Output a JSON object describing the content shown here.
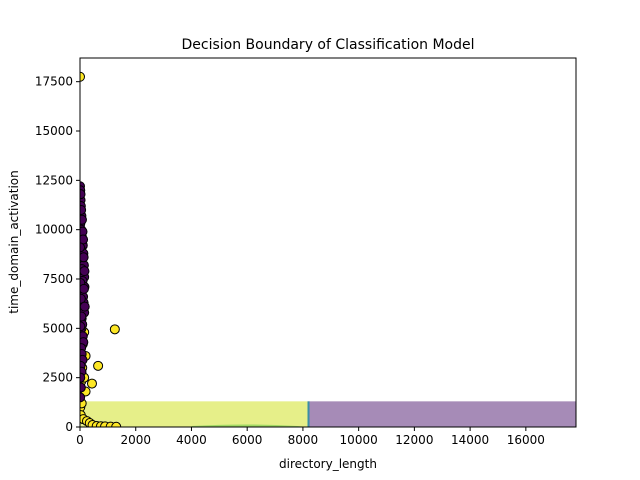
{
  "chart_data": {
    "type": "scatter",
    "title": "Decision Boundary of Classification Model",
    "xlabel": "directory_length",
    "ylabel": "time_domain_activation",
    "xlim": [
      0,
      17800
    ],
    "ylim": [
      0,
      18700
    ],
    "xticks": [
      0,
      2000,
      4000,
      6000,
      8000,
      10000,
      12000,
      14000,
      16000
    ],
    "yticks": [
      0,
      2500,
      5000,
      7500,
      10000,
      12500,
      15000,
      17500
    ],
    "grid": false,
    "legend": "none",
    "colors": {
      "class_yellow": "#fde725",
      "class_purple": "#440154",
      "region_yellow": "#e6ef89",
      "region_purple": "#a68bb7",
      "region_green": "#8fd35a",
      "boundary_teal": "#3b8ea5",
      "marker_edge": "#000000"
    },
    "regions": [
      {
        "class": "yellow",
        "x": [
          0,
          8200
        ],
        "y": [
          0,
          1300
        ]
      },
      {
        "class": "purple",
        "x": [
          8200,
          17800
        ],
        "y": [
          0,
          1300
        ]
      }
    ],
    "series": [
      {
        "class": "yellow",
        "points": [
          [
            0,
            17750
          ],
          [
            1250,
            4950
          ],
          [
            650,
            3100
          ],
          [
            430,
            2200
          ],
          [
            200,
            3600
          ],
          [
            150,
            4800
          ],
          [
            100,
            4200
          ],
          [
            60,
            2700
          ],
          [
            40,
            2300
          ],
          [
            20,
            2000
          ],
          [
            10,
            1000
          ],
          [
            30,
            600
          ],
          [
            60,
            1200
          ],
          [
            120,
            400
          ],
          [
            250,
            300
          ],
          [
            350,
            200
          ],
          [
            450,
            100
          ],
          [
            600,
            50
          ],
          [
            750,
            40
          ],
          [
            900,
            30
          ],
          [
            1100,
            20
          ],
          [
            1300,
            10
          ],
          [
            80,
            3000
          ],
          [
            50,
            5000
          ],
          [
            100,
            6000
          ],
          [
            90,
            7100
          ],
          [
            30,
            8000
          ],
          [
            5,
            5500
          ],
          [
            5,
            3800
          ],
          [
            150,
            2500
          ],
          [
            200,
            1800
          ],
          [
            10,
            4400
          ],
          [
            0,
            2800
          ]
        ]
      },
      {
        "class": "purple",
        "points": [
          [
            0,
            12200
          ],
          [
            10,
            12000
          ],
          [
            20,
            11500
          ],
          [
            30,
            11200
          ],
          [
            50,
            10700
          ],
          [
            10,
            10300
          ],
          [
            40,
            10000
          ],
          [
            60,
            9700
          ],
          [
            80,
            9400
          ],
          [
            100,
            9200
          ],
          [
            30,
            9000
          ],
          [
            120,
            8800
          ],
          [
            50,
            8500
          ],
          [
            140,
            8200
          ],
          [
            70,
            8000
          ],
          [
            150,
            7600
          ],
          [
            90,
            7400
          ],
          [
            160,
            7100
          ],
          [
            20,
            6900
          ],
          [
            110,
            6600
          ],
          [
            130,
            6300
          ],
          [
            40,
            6000
          ],
          [
            150,
            5800
          ],
          [
            60,
            5500
          ],
          [
            80,
            5200
          ],
          [
            20,
            4900
          ],
          [
            100,
            4600
          ],
          [
            120,
            4300
          ],
          [
            40,
            4000
          ],
          [
            60,
            3700
          ],
          [
            90,
            3400
          ],
          [
            20,
            3100
          ],
          [
            50,
            2800
          ],
          [
            10,
            2500
          ],
          [
            30,
            2000
          ],
          [
            5,
            1500
          ],
          [
            20,
            11800
          ],
          [
            40,
            11000
          ],
          [
            70,
            10500
          ],
          [
            90,
            9900
          ],
          [
            110,
            9500
          ],
          [
            0,
            9100
          ],
          [
            130,
            8600
          ],
          [
            160,
            7900
          ],
          [
            10,
            7300
          ],
          [
            140,
            7000
          ],
          [
            30,
            6500
          ],
          [
            170,
            6100
          ],
          [
            50,
            5600
          ],
          [
            10,
            5100
          ]
        ]
      }
    ]
  }
}
